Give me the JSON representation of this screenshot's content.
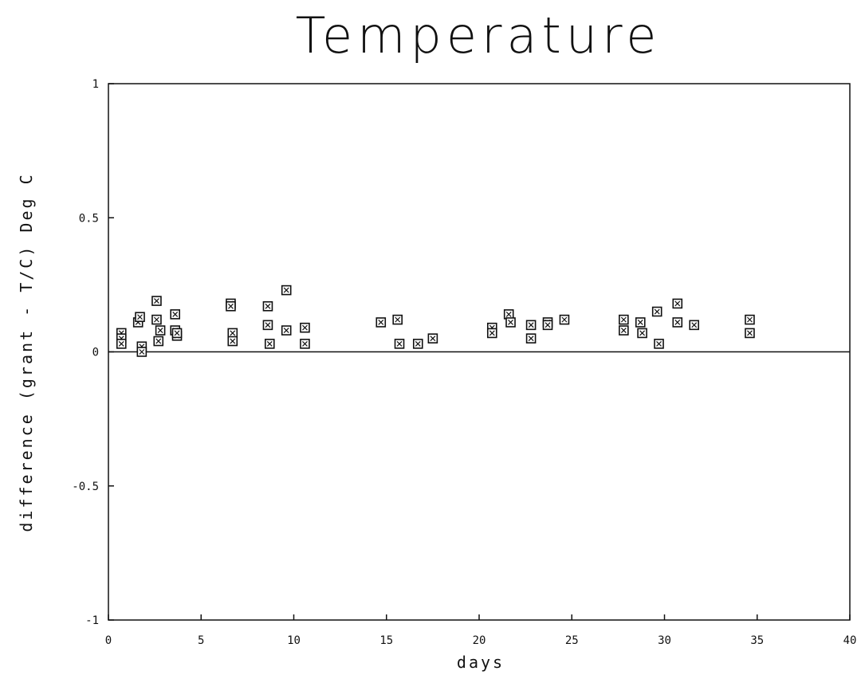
{
  "chart_data": {
    "type": "scatter",
    "title": "Temperature",
    "xlabel": "days",
    "ylabel": "difference (grant - T/C)   Deg C",
    "xlim": [
      0,
      40
    ],
    "ylim": [
      -1,
      1
    ],
    "x_ticks": [
      0,
      5,
      10,
      15,
      20,
      25,
      30,
      35,
      40
    ],
    "y_ticks": [
      -1,
      -0.5,
      0,
      0.5,
      1
    ],
    "x_tick_labels": [
      "0",
      "5",
      "10",
      "15",
      "20",
      "25",
      "30",
      "35",
      "40"
    ],
    "y_tick_labels": [
      "-1",
      "-0.5",
      "0",
      "0.5",
      "1"
    ],
    "grid": false,
    "zero_line": true,
    "marker": "boxed-x",
    "series": [
      {
        "x": [
          0.7,
          0.7,
          0.7,
          1.6,
          1.7,
          1.8,
          1.8,
          2.6,
          2.6,
          2.7,
          2.8,
          3.6,
          3.6,
          3.7,
          3.7,
          6.6,
          6.6,
          6.7,
          6.7,
          8.6,
          8.6,
          8.7,
          9.6,
          9.6,
          10.6,
          10.6,
          14.7,
          15.6,
          15.7,
          16.7,
          17.5,
          20.7,
          20.7,
          21.6,
          21.7,
          22.8,
          22.8,
          23.7,
          23.7,
          24.6,
          27.8,
          27.8,
          28.7,
          28.8,
          29.6,
          29.7,
          30.7,
          30.7,
          31.6,
          34.6,
          34.6
        ],
        "y": [
          0.07,
          0.05,
          0.03,
          0.11,
          0.13,
          0.02,
          0.0,
          0.19,
          0.12,
          0.04,
          0.08,
          0.14,
          0.08,
          0.06,
          0.07,
          0.18,
          0.17,
          0.07,
          0.04,
          0.17,
          0.1,
          0.03,
          0.23,
          0.08,
          0.09,
          0.03,
          0.11,
          0.12,
          0.03,
          0.03,
          0.05,
          0.09,
          0.07,
          0.14,
          0.11,
          0.1,
          0.05,
          0.11,
          0.1,
          0.12,
          0.12,
          0.08,
          0.11,
          0.07,
          0.15,
          0.03,
          0.18,
          0.11,
          0.1,
          0.12,
          0.07
        ]
      }
    ]
  }
}
